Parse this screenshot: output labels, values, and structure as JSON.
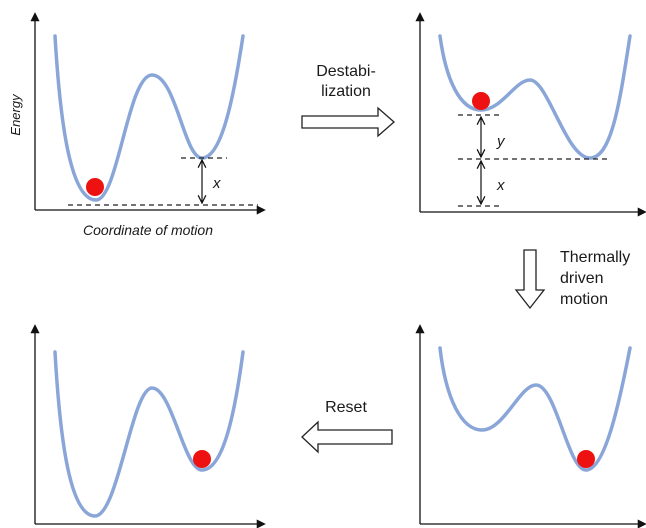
{
  "colors": {
    "curve": "#8aa6d8",
    "ball": "#ee1111",
    "axis": "#111111",
    "arrow_outline": "#222222",
    "arrow_fill": "#ffffff"
  },
  "panels": {
    "top_left": {
      "axis_y_label": "Energy",
      "axis_x_label": "Coordinate of motion",
      "gap_label": "x"
    },
    "top_right": {
      "upper_gap_label": "y",
      "lower_gap_label": "x"
    }
  },
  "steps": {
    "destabilization": {
      "line1": "Destabi-",
      "line2": "lization"
    },
    "thermal": {
      "line1": "Thermally",
      "line2": "driven",
      "line3": "motion"
    },
    "reset": {
      "label": "Reset"
    }
  }
}
